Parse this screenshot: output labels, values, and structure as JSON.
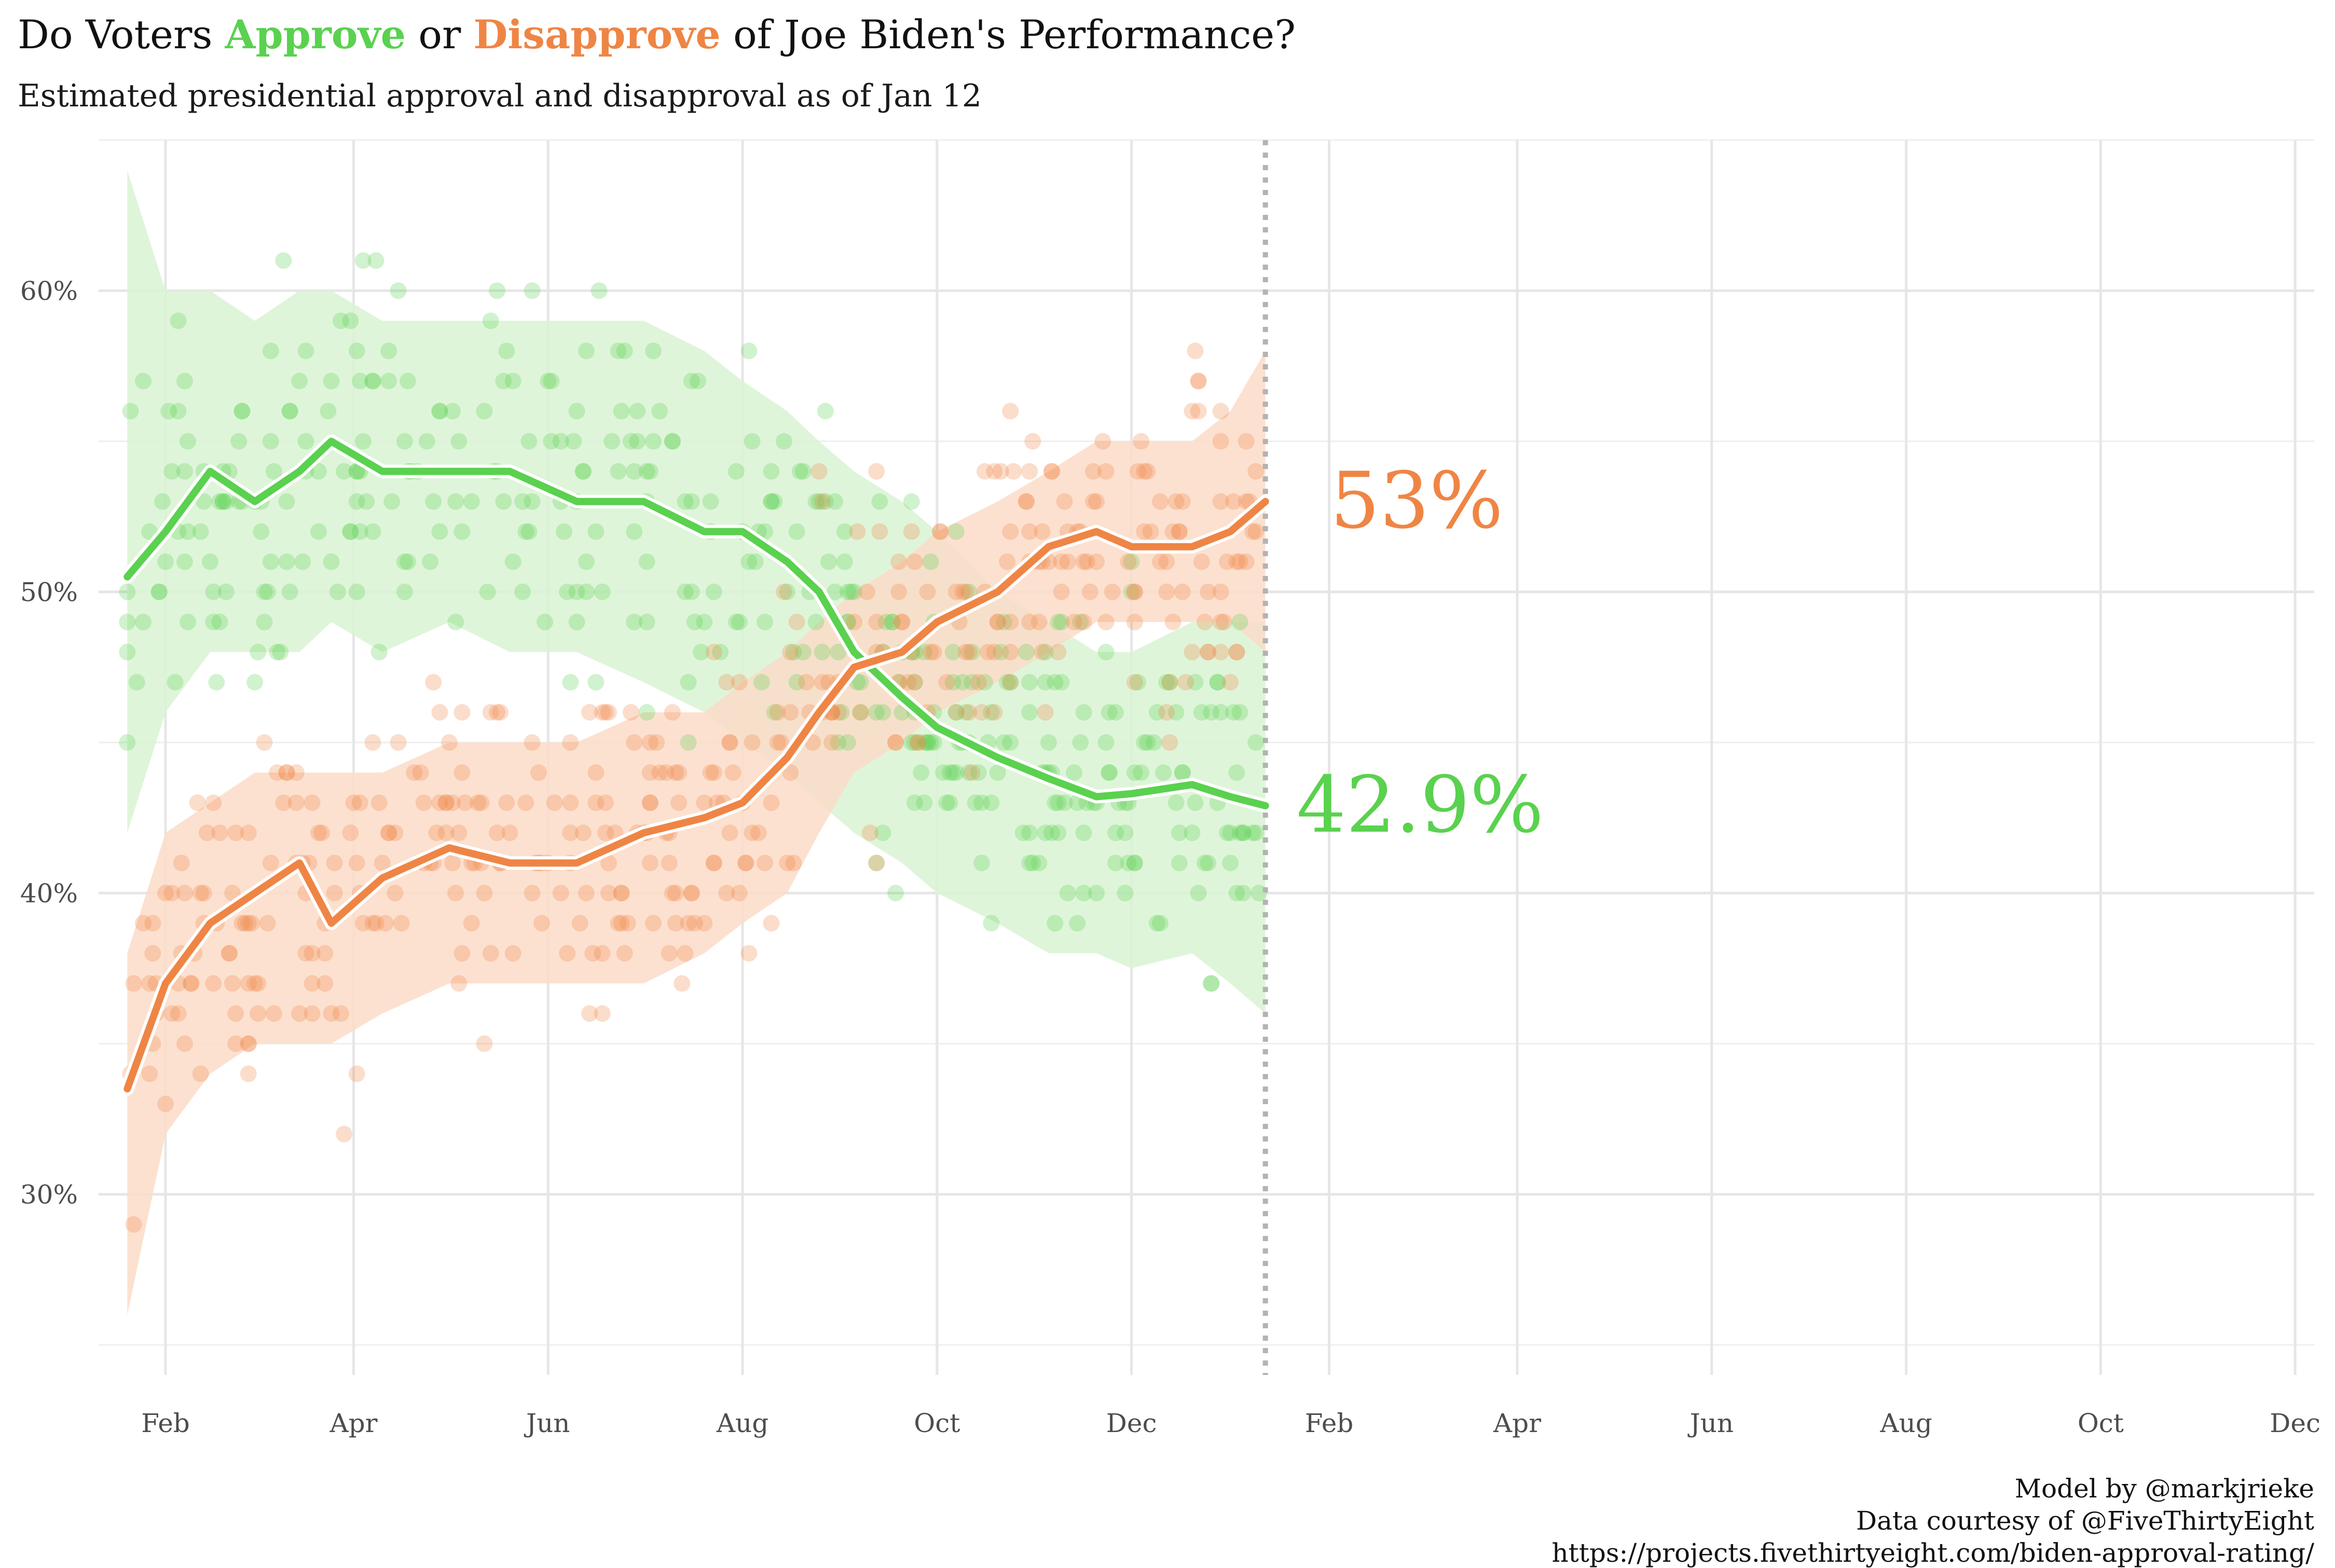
{
  "title": {
    "prefix": "Do Voters ",
    "approve_word": "Approve",
    "middle": " or ",
    "disapprove_word": "Disapprove",
    "suffix": " of Joe Biden's Performance?"
  },
  "subtitle": "Estimated presidential approval and disapproval as of Jan 12",
  "caption": [
    "Model by @markjrieke",
    "Data courtesy of @FiveThirtyEight",
    "https://projects.fivethirtyeight.com/biden-approval-rating/"
  ],
  "colors": {
    "approve": "#5ad14f",
    "disapprove": "#ef8545",
    "approve_band": "#d9f3d3",
    "disapprove_band": "#fbdcc8",
    "grid": "#e6e6e6",
    "cutoff_line": "#b3b3b3"
  },
  "chart_data": {
    "type": "line",
    "x_label": "",
    "y_label": "",
    "x_tick_labels": [
      "Feb",
      "Apr",
      "Jun",
      "Aug",
      "Oct",
      "Dec",
      "Feb",
      "Apr",
      "Jun",
      "Aug",
      "Oct",
      "Dec"
    ],
    "x_tick_dates": [
      "2021-02-01",
      "2021-04-01",
      "2021-06-01",
      "2021-08-01",
      "2021-10-01",
      "2021-12-01",
      "2022-02-01",
      "2022-04-01",
      "2022-06-01",
      "2022-08-01",
      "2022-10-01",
      "2022-12-01"
    ],
    "x_range": [
      "2021-01-11",
      "2022-12-07"
    ],
    "y_ticks": [
      0.3,
      0.4,
      0.5,
      0.6
    ],
    "y_tick_labels": [
      "30%",
      "40%",
      "50%",
      "60%"
    ],
    "y_range": [
      0.24,
      0.65
    ],
    "cutoff_date": "2022-01-12",
    "grid": true,
    "legend": "none",
    "end_labels": {
      "approve": "42.9%",
      "disapprove": "53%"
    },
    "series": [
      {
        "key": "approve",
        "x": [
          "2021-01-20",
          "2021-02-01",
          "2021-02-15",
          "2021-03-01",
          "2021-03-15",
          "2021-03-25",
          "2021-04-10",
          "2021-05-01",
          "2021-05-20",
          "2021-06-10",
          "2021-07-01",
          "2021-07-20",
          "2021-08-01",
          "2021-08-15",
          "2021-08-25",
          "2021-09-05",
          "2021-09-20",
          "2021-10-01",
          "2021-10-20",
          "2021-11-05",
          "2021-11-20",
          "2021-12-01",
          "2021-12-20",
          "2022-01-01",
          "2022-01-12"
        ],
        "values": [
          0.505,
          0.52,
          0.54,
          0.53,
          0.54,
          0.55,
          0.54,
          0.54,
          0.54,
          0.53,
          0.53,
          0.52,
          0.52,
          0.51,
          0.5,
          0.48,
          0.465,
          0.455,
          0.445,
          0.438,
          0.432,
          0.433,
          0.436,
          0.432,
          0.429
        ],
        "upper": [
          0.64,
          0.6,
          0.6,
          0.59,
          0.6,
          0.6,
          0.59,
          0.59,
          0.59,
          0.59,
          0.59,
          0.58,
          0.57,
          0.56,
          0.55,
          0.54,
          0.53,
          0.52,
          0.5,
          0.49,
          0.48,
          0.48,
          0.49,
          0.49,
          0.49
        ],
        "lower": [
          0.42,
          0.46,
          0.48,
          0.48,
          0.48,
          0.49,
          0.48,
          0.49,
          0.48,
          0.48,
          0.47,
          0.46,
          0.45,
          0.44,
          0.43,
          0.42,
          0.41,
          0.4,
          0.39,
          0.38,
          0.38,
          0.375,
          0.38,
          0.37,
          0.36
        ]
      },
      {
        "key": "disapprove",
        "x": [
          "2021-01-20",
          "2021-02-01",
          "2021-02-15",
          "2021-03-01",
          "2021-03-15",
          "2021-03-25",
          "2021-04-10",
          "2021-05-01",
          "2021-05-20",
          "2021-06-10",
          "2021-07-01",
          "2021-07-20",
          "2021-08-01",
          "2021-08-15",
          "2021-08-25",
          "2021-09-05",
          "2021-09-20",
          "2021-10-01",
          "2021-10-20",
          "2021-11-05",
          "2021-11-20",
          "2021-12-01",
          "2021-12-20",
          "2022-01-01",
          "2022-01-12"
        ],
        "values": [
          0.335,
          0.37,
          0.39,
          0.4,
          0.41,
          0.39,
          0.405,
          0.415,
          0.41,
          0.41,
          0.42,
          0.425,
          0.43,
          0.445,
          0.46,
          0.475,
          0.48,
          0.49,
          0.5,
          0.515,
          0.52,
          0.515,
          0.515,
          0.52,
          0.53
        ],
        "upper": [
          0.38,
          0.42,
          0.43,
          0.44,
          0.44,
          0.44,
          0.44,
          0.45,
          0.45,
          0.45,
          0.46,
          0.46,
          0.47,
          0.48,
          0.49,
          0.5,
          0.51,
          0.52,
          0.53,
          0.54,
          0.55,
          0.55,
          0.55,
          0.56,
          0.58
        ],
        "lower": [
          0.26,
          0.32,
          0.34,
          0.35,
          0.35,
          0.35,
          0.36,
          0.37,
          0.37,
          0.37,
          0.37,
          0.38,
          0.39,
          0.4,
          0.42,
          0.44,
          0.45,
          0.46,
          0.47,
          0.48,
          0.49,
          0.49,
          0.49,
          0.49,
          0.48
        ]
      }
    ]
  }
}
